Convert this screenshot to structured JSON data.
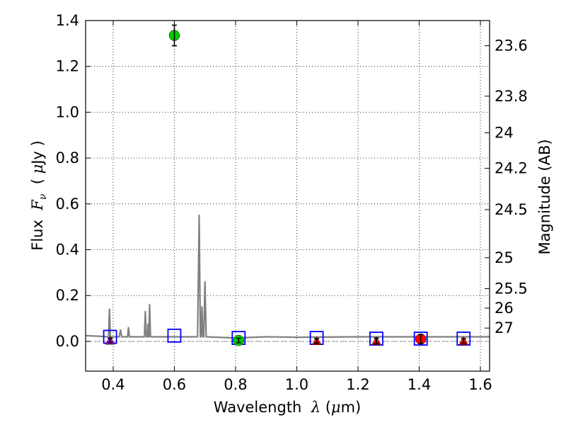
{
  "chart_data": {
    "type": "scatter",
    "xlabel": {
      "prefix": "Wavelength  ",
      "symbol": "λ",
      "open": " (",
      "unit_sym": "μ",
      "unit": "m)"
    },
    "ylabel": {
      "prefix": "Flux  ",
      "symbol": "F",
      "sub": "ν",
      "open": "  ( ",
      "unit_sym": "μ",
      "unit": "Jy )"
    },
    "y2label": "Magnitude (AB)",
    "xlim": [
      0.31,
      1.63
    ],
    "ylim": [
      -0.13,
      1.4
    ],
    "xticks": [
      {
        "value": 0.4,
        "label": "0.4"
      },
      {
        "value": 0.6,
        "label": "0.6"
      },
      {
        "value": 0.8,
        "label": "0.8"
      },
      {
        "value": 1.0,
        "label": "1.0"
      },
      {
        "value": 1.2,
        "label": "1.2"
      },
      {
        "value": 1.4,
        "label": "1.4"
      },
      {
        "value": 1.6,
        "label": "1.6"
      }
    ],
    "yticks": [
      {
        "value": 0.0,
        "label": "0.0"
      },
      {
        "value": 0.2,
        "label": "0.2"
      },
      {
        "value": 0.4,
        "label": "0.4"
      },
      {
        "value": 0.6,
        "label": "0.6"
      },
      {
        "value": 0.8,
        "label": "0.8"
      },
      {
        "value": 1.0,
        "label": "1.0"
      },
      {
        "value": 1.2,
        "label": "1.2"
      },
      {
        "value": 1.4,
        "label": "1.4"
      }
    ],
    "mag_ticks": [
      {
        "value": 1.29,
        "label": "23.6"
      },
      {
        "value": 1.07,
        "label": "23.8"
      },
      {
        "value": 0.91,
        "label": "24"
      },
      {
        "value": 0.755,
        "label": "24.2"
      },
      {
        "value": 0.575,
        "label": "24.5"
      },
      {
        "value": 0.365,
        "label": "25"
      },
      {
        "value": 0.23,
        "label": "25.5"
      },
      {
        "value": 0.145,
        "label": "26"
      },
      {
        "value": 0.058,
        "label": "27"
      }
    ],
    "grid": true,
    "model_spectrum": {
      "color": "#808080",
      "points": [
        [
          0.31,
          0.025
        ],
        [
          0.36,
          0.022
        ],
        [
          0.385,
          0.02
        ],
        [
          0.388,
          0.14
        ],
        [
          0.391,
          0.02
        ],
        [
          0.42,
          0.02
        ],
        [
          0.424,
          0.05
        ],
        [
          0.428,
          0.02
        ],
        [
          0.447,
          0.02
        ],
        [
          0.45,
          0.06
        ],
        [
          0.453,
          0.02
        ],
        [
          0.502,
          0.02
        ],
        [
          0.505,
          0.13
        ],
        [
          0.508,
          0.02
        ],
        [
          0.512,
          0.02
        ],
        [
          0.514,
          0.075
        ],
        [
          0.516,
          0.02
        ],
        [
          0.517,
          0.02
        ],
        [
          0.519,
          0.16
        ],
        [
          0.522,
          0.02
        ],
        [
          0.58,
          0.02
        ],
        [
          0.676,
          0.02
        ],
        [
          0.681,
          0.55
        ],
        [
          0.685,
          0.02
        ],
        [
          0.687,
          0.02
        ],
        [
          0.69,
          0.15
        ],
        [
          0.693,
          0.02
        ],
        [
          0.696,
          0.02
        ],
        [
          0.7,
          0.26
        ],
        [
          0.704,
          0.02
        ],
        [
          0.8,
          0.015
        ],
        [
          0.9,
          0.02
        ],
        [
          1.0,
          0.018
        ],
        [
          1.2,
          0.02
        ],
        [
          1.4,
          0.02
        ],
        [
          1.63,
          0.02
        ]
      ]
    },
    "model_photometry": {
      "marker": "open-square",
      "color": "#0000ff",
      "points": [
        [
          0.39,
          0.02
        ],
        [
          0.6,
          0.025
        ],
        [
          0.81,
          0.015
        ],
        [
          1.065,
          0.015
        ],
        [
          1.26,
          0.012
        ],
        [
          1.405,
          0.012
        ],
        [
          1.545,
          0.012
        ]
      ]
    },
    "observations": [
      {
        "x": 0.39,
        "y": 0.004,
        "err": 0.01,
        "marker": "triangle",
        "color": "#b000d0"
      },
      {
        "x": 0.6,
        "y": 1.335,
        "err": 0.045,
        "marker": "circle",
        "color": "#00cc00"
      },
      {
        "x": 0.81,
        "y": 0.004,
        "err": 0.01,
        "marker": "circle",
        "color": "#00cc00"
      },
      {
        "x": 1.065,
        "y": 0.002,
        "err": 0.01,
        "marker": "triangle",
        "color": "#ff0000"
      },
      {
        "x": 1.26,
        "y": 0.002,
        "err": 0.012,
        "marker": "triangle",
        "color": "#ff0000"
      },
      {
        "x": 1.405,
        "y": 0.01,
        "err": 0.02,
        "marker": "circle",
        "color": "#ff0000"
      },
      {
        "x": 1.545,
        "y": 0.002,
        "err": 0.01,
        "marker": "triangle",
        "color": "#ff0000"
      }
    ]
  }
}
